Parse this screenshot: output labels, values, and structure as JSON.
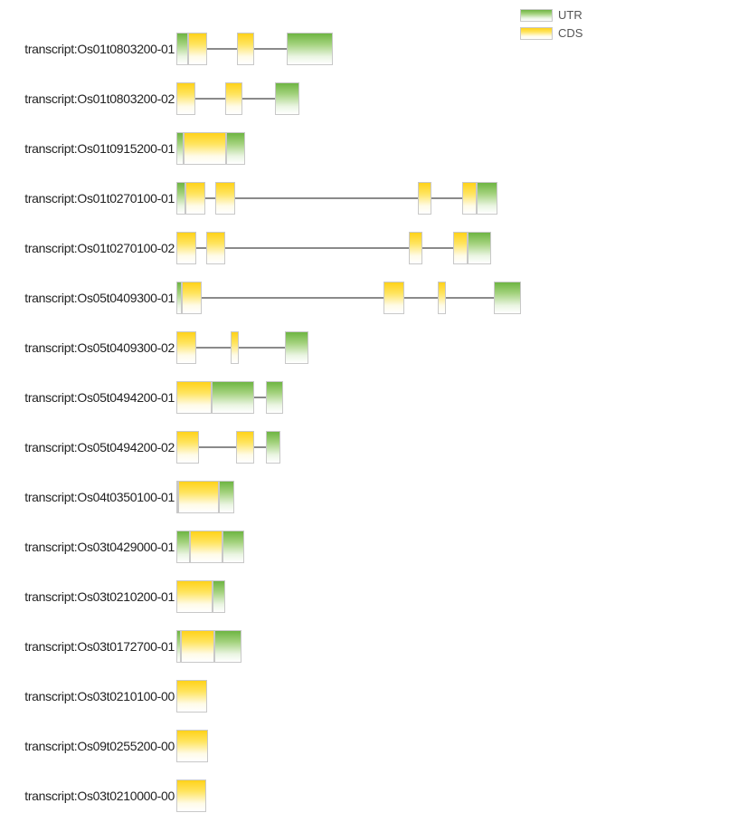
{
  "legend": [
    {
      "label": "UTR",
      "kind": "utr"
    },
    {
      "label": "CDS",
      "kind": "cds"
    }
  ],
  "transcripts": [
    {
      "label": "transcript:Os01t0803200-01",
      "exons": [
        [
          [
            "utr",
            195,
            208
          ],
          [
            "cds",
            208,
            229
          ]
        ],
        [
          [
            "cds",
            262,
            281
          ]
        ],
        [
          [
            "utr",
            317,
            368
          ]
        ]
      ]
    },
    {
      "label": "transcript:Os01t0803200-02",
      "exons": [
        [
          [
            "cds",
            195,
            216
          ]
        ],
        [
          [
            "cds",
            249,
            268
          ]
        ],
        [
          [
            "utr",
            304,
            331
          ]
        ]
      ]
    },
    {
      "label": "transcript:Os01t0915200-01",
      "exons": [
        [
          [
            "utr",
            195,
            203
          ],
          [
            "cds",
            203,
            250
          ],
          [
            "utr",
            250,
            271
          ]
        ]
      ]
    },
    {
      "label": "transcript:Os01t0270100-01",
      "exons": [
        [
          [
            "utr",
            195,
            205
          ],
          [
            "cds",
            205,
            227
          ]
        ],
        [
          [
            "cds",
            238,
            260
          ]
        ],
        [
          [
            "cds",
            462,
            477
          ]
        ],
        [
          [
            "cds",
            511,
            527
          ],
          [
            "utr",
            527,
            550
          ]
        ]
      ]
    },
    {
      "label": "transcript:Os01t0270100-02",
      "exons": [
        [
          [
            "cds",
            195,
            217
          ]
        ],
        [
          [
            "cds",
            228,
            249
          ]
        ],
        [
          [
            "cds",
            452,
            467
          ]
        ],
        [
          [
            "cds",
            501,
            517
          ],
          [
            "utr",
            517,
            543
          ]
        ]
      ]
    },
    {
      "label": "transcript:Os05t0409300-01",
      "exons": [
        [
          [
            "utr",
            195,
            201
          ],
          [
            "cds",
            201,
            223
          ]
        ],
        [
          [
            "cds",
            424,
            447
          ]
        ],
        [
          [
            "cds",
            484,
            493
          ]
        ],
        [
          [
            "utr",
            546,
            576
          ]
        ]
      ]
    },
    {
      "label": "transcript:Os05t0409300-02",
      "exons": [
        [
          [
            "cds",
            195,
            217
          ]
        ],
        [
          [
            "cds",
            255,
            264
          ]
        ],
        [
          [
            "utr",
            315,
            341
          ]
        ]
      ]
    },
    {
      "label": "transcript:Os05t0494200-01",
      "exons": [
        [
          [
            "cds",
            195,
            234
          ],
          [
            "utr",
            234,
            281
          ]
        ],
        [
          [
            "utr",
            294,
            313
          ]
        ]
      ]
    },
    {
      "label": "transcript:Os05t0494200-02",
      "exons": [
        [
          [
            "cds",
            195,
            220
          ]
        ],
        [
          [
            "cds",
            261,
            281
          ]
        ],
        [
          [
            "utr",
            294,
            310
          ]
        ]
      ]
    },
    {
      "label": "transcript:Os04t0350100-01",
      "exons": [
        [
          [
            "utr",
            195,
            197
          ],
          [
            "cds",
            197,
            242
          ],
          [
            "utr",
            242,
            259
          ]
        ]
      ]
    },
    {
      "label": "transcript:Os03t0429000-01",
      "exons": [
        [
          [
            "utr",
            195,
            210
          ],
          [
            "cds",
            210,
            246
          ],
          [
            "utr",
            246,
            270
          ]
        ]
      ]
    },
    {
      "label": "transcript:Os03t0210200-01",
      "exons": [
        [
          [
            "cds",
            195,
            235
          ],
          [
            "utr",
            235,
            249
          ]
        ]
      ]
    },
    {
      "label": "transcript:Os03t0172700-01",
      "exons": [
        [
          [
            "utr",
            195,
            200
          ],
          [
            "cds",
            200,
            237
          ],
          [
            "utr",
            237,
            267
          ]
        ]
      ]
    },
    {
      "label": "transcript:Os03t0210100-00",
      "exons": [
        [
          [
            "cds",
            195,
            229
          ]
        ]
      ]
    },
    {
      "label": "transcript:Os09t0255200-00",
      "exons": [
        [
          [
            "cds",
            195,
            230
          ]
        ]
      ]
    },
    {
      "label": "transcript:Os03t0210000-00",
      "exons": [
        [
          [
            "cds",
            195,
            228
          ]
        ]
      ]
    }
  ]
}
